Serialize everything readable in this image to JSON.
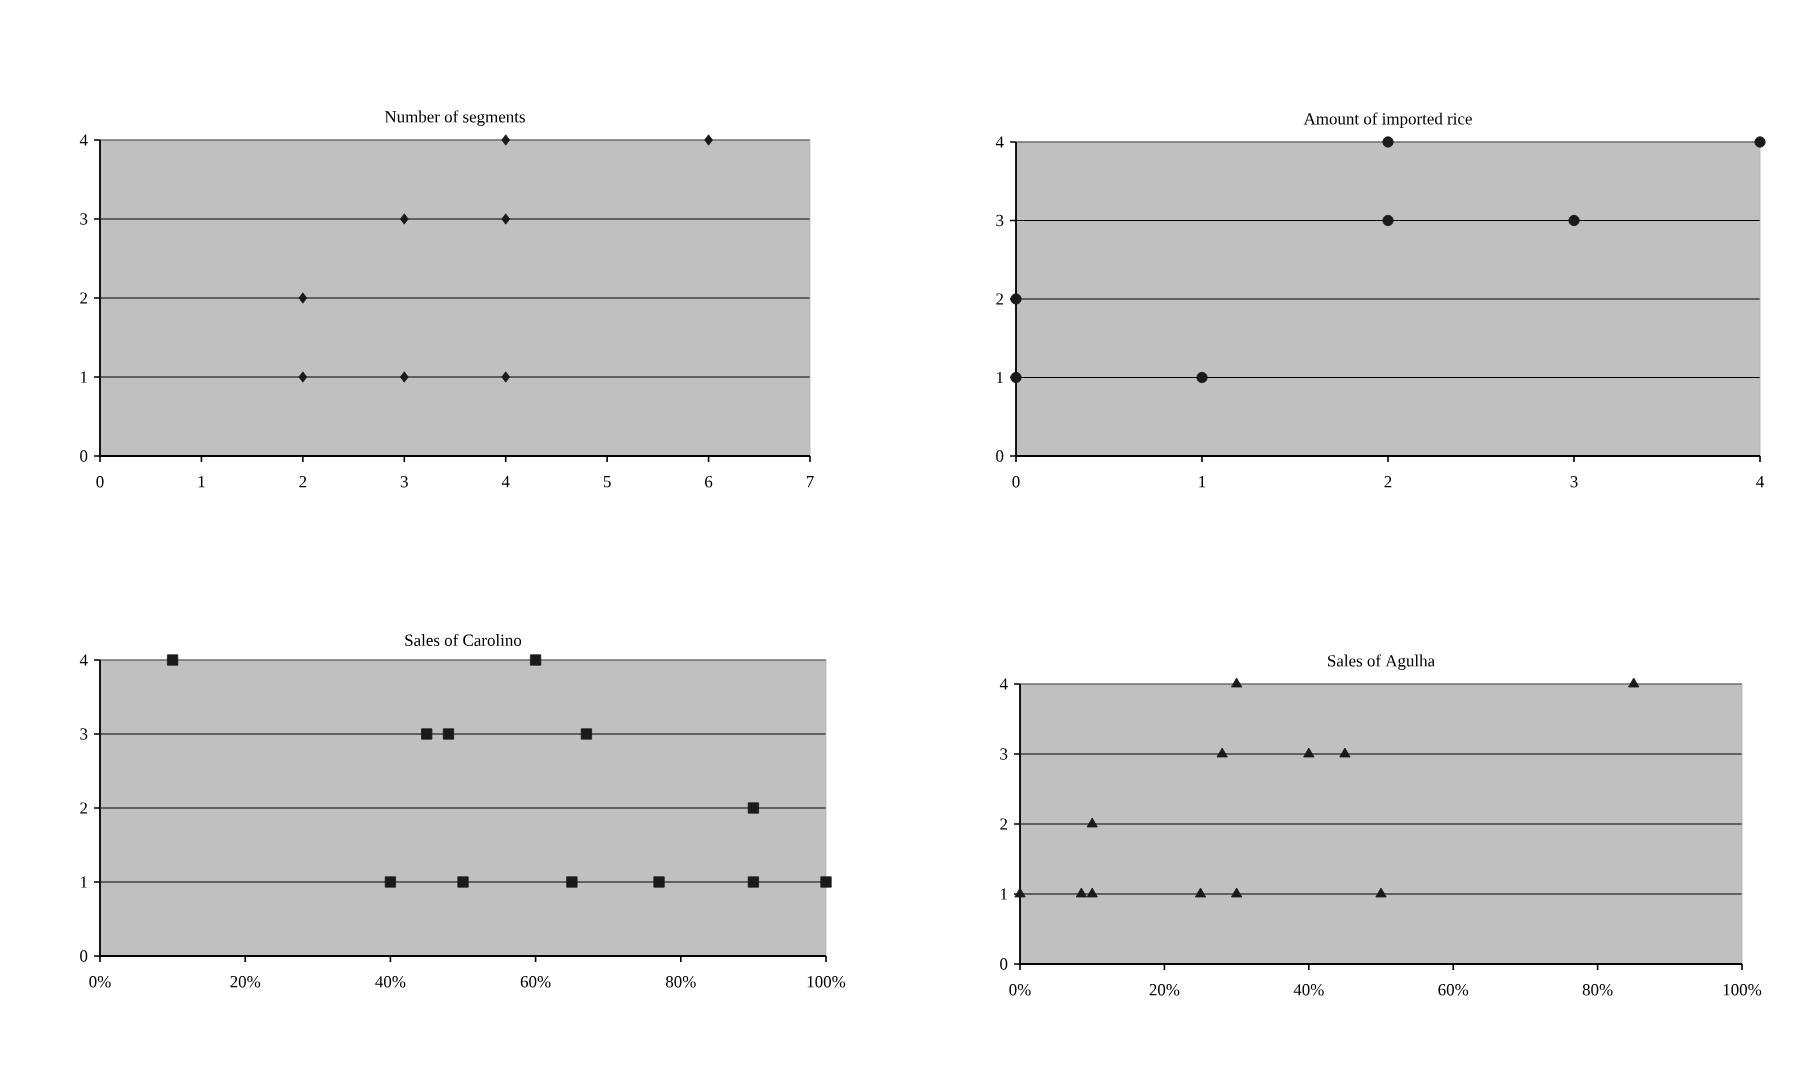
{
  "chart_data": [
    {
      "type": "scatter",
      "title": "Number of segments",
      "x": [
        2,
        2,
        3,
        3,
        4,
        4,
        4,
        6
      ],
      "values": [
        1,
        2,
        1,
        3,
        1,
        3,
        4,
        4
      ],
      "color": "#1a1a1a",
      "marker": "diamond",
      "xlim": [
        0,
        7
      ],
      "ylim": [
        0,
        4
      ],
      "xticks": [
        0,
        1,
        2,
        3,
        4,
        5,
        6,
        7
      ],
      "yticks": [
        0,
        1,
        2,
        3,
        4
      ],
      "grid": "y"
    },
    {
      "type": "scatter",
      "title": "Amount of imported rice",
      "x": [
        0,
        0,
        1,
        2,
        2,
        3,
        4
      ],
      "values": [
        1,
        2,
        1,
        3,
        4,
        3,
        4
      ],
      "color": "#1a1a1a",
      "marker": "circle",
      "xlim": [
        0,
        4
      ],
      "ylim": [
        0,
        4
      ],
      "xticks": [
        0,
        1,
        2,
        3,
        4
      ],
      "yticks": [
        0,
        1,
        2,
        3,
        4
      ],
      "grid": "y"
    },
    {
      "type": "scatter",
      "title": "Sales of Carolino",
      "x": [
        10,
        45,
        48,
        60,
        67,
        90,
        40,
        50,
        65,
        77,
        90,
        100
      ],
      "values": [
        4,
        3,
        3,
        4,
        3,
        2,
        1,
        1,
        1,
        1,
        1,
        1
      ],
      "color": "#1a1a1a",
      "marker": "square",
      "xlim": [
        0,
        100
      ],
      "ylim": [
        0,
        4
      ],
      "xticks": [
        {
          "value": 0,
          "label": "0%"
        },
        {
          "value": 20,
          "label": "20%"
        },
        {
          "value": 40,
          "label": "40%"
        },
        {
          "value": 60,
          "label": "60%"
        },
        {
          "value": 80,
          "label": "80%"
        },
        {
          "value": 100,
          "label": "100%"
        }
      ],
      "yticks": [
        0,
        1,
        2,
        3,
        4
      ],
      "grid": "y"
    },
    {
      "type": "scatter",
      "title": "Sales of Agulha",
      "x": [
        0,
        8.5,
        10,
        10,
        25,
        28,
        30,
        30,
        40,
        45,
        50,
        85
      ],
      "values": [
        1,
        1,
        1,
        2,
        1,
        3,
        4,
        1,
        3,
        3,
        1,
        4
      ],
      "color": "#1a1a1a",
      "marker": "triangle",
      "xlim": [
        0,
        100
      ],
      "ylim": [
        0,
        4
      ],
      "xticks": [
        {
          "value": 0,
          "label": "0%"
        },
        {
          "value": 20,
          "label": "20%"
        },
        {
          "value": 40,
          "label": "40%"
        },
        {
          "value": 60,
          "label": "60%"
        },
        {
          "value": 80,
          "label": "80%"
        },
        {
          "value": 100,
          "label": "100%"
        }
      ],
      "yticks": [
        0,
        1,
        2,
        3,
        4
      ],
      "grid": "y"
    }
  ]
}
